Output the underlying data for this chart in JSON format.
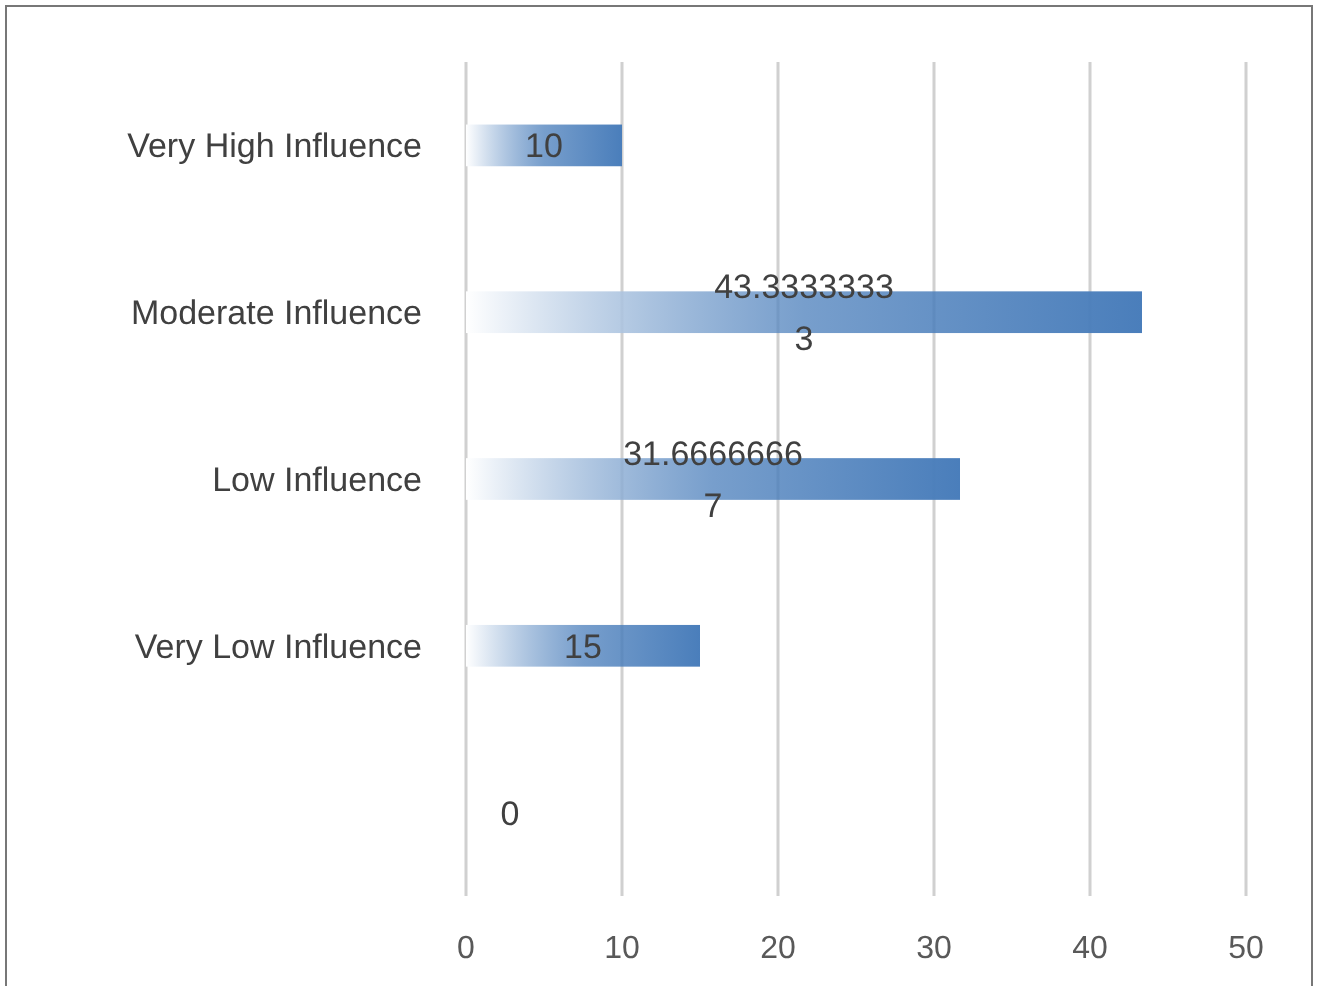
{
  "chart_data": {
    "type": "bar",
    "orientation": "horizontal",
    "categories": [
      "Very High Influence",
      "Moderate Influence",
      "Low Influence",
      "Very Low Influence",
      null
    ],
    "values": [
      10,
      43.33333333,
      31.66666667,
      15,
      0
    ],
    "color": "#4a7ebb",
    "xlim": [
      0,
      50
    ],
    "xticks": [
      0,
      10,
      20,
      30,
      40,
      50
    ],
    "grid": "x",
    "data_labels": true
  }
}
